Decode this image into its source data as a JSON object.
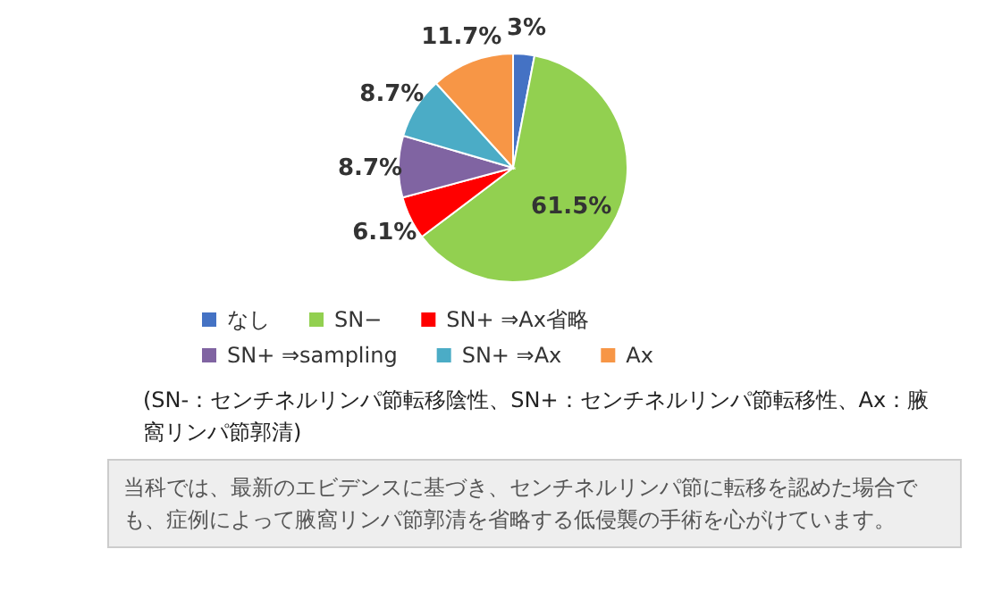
{
  "chart_data": {
    "type": "pie",
    "categories": [
      "なし",
      "SN−",
      "SN+ ⇒Ax省略",
      "SN+ ⇒sampling",
      "SN+ ⇒Ax",
      "Ax"
    ],
    "values": [
      3,
      61.5,
      6.1,
      8.7,
      8.7,
      11.7
    ],
    "value_labels": [
      "3%",
      "61.5%",
      "6.1%",
      "8.7%",
      "8.7%",
      "11.7%"
    ],
    "colors": [
      "#4472c4",
      "#92d050",
      "#ff0000",
      "#8064a2",
      "#4bacc6",
      "#f79646"
    ],
    "legend": "bottom",
    "annotations": [
      "(SN-：センチネルリンパ節転移陰性、SN+：センチネルリンパ節転移性、Ax：腋窩リンパ節郭清)",
      "当科では、最新のエビデンスに基づき、センチネルリンパ節に転移を認めた場合でも、症例によって腋窩リンパ節郭清を省略する低侵襲の手術を心がけています。"
    ]
  }
}
